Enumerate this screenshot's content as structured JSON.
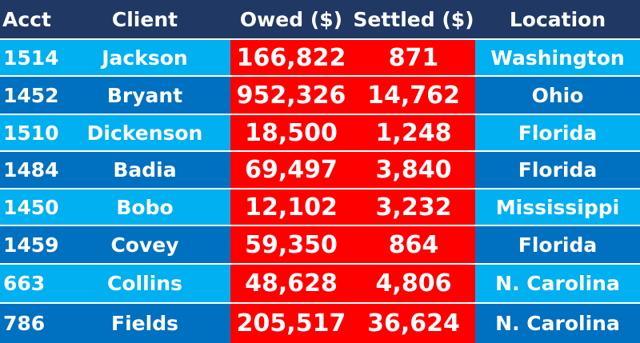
{
  "table": {
    "colors": {
      "header_bg": "#1f3864",
      "row_light": "#00b0f0",
      "row_dark": "#0070c0",
      "money_bg": "#ff0000",
      "text": "#ffffff"
    },
    "headers": [
      "Acct",
      "Client",
      "Owed ($)",
      "Settled ($)",
      "Location"
    ],
    "rows": [
      {
        "acct": "1514",
        "client": "Jackson",
        "owed": "166,822",
        "settled": "871",
        "location": "Washington",
        "shade": "light"
      },
      {
        "acct": "1452",
        "client": "Bryant",
        "owed": "952,326",
        "settled": "14,762",
        "location": "Ohio",
        "shade": "dark"
      },
      {
        "acct": "1510",
        "client": "Dickenson",
        "owed": "18,500",
        "settled": "1,248",
        "location": "Florida",
        "shade": "light"
      },
      {
        "acct": "1484",
        "client": "Badia",
        "owed": "69,497",
        "settled": "3,840",
        "location": "Florida",
        "shade": "dark"
      },
      {
        "acct": "1450",
        "client": "Bobo",
        "owed": "12,102",
        "settled": "3,232",
        "location": "Mississippi",
        "shade": "light"
      },
      {
        "acct": "1459",
        "client": "Covey",
        "owed": "59,350",
        "settled": "864",
        "location": "Florida",
        "shade": "dark"
      },
      {
        "acct": "663",
        "client": "Collins",
        "owed": "48,628",
        "settled": "4,806",
        "location": "N. Carolina",
        "shade": "light"
      },
      {
        "acct": "786",
        "client": "Fields",
        "owed": "205,517",
        "settled": "36,624",
        "location": "N. Carolina",
        "shade": "dark"
      }
    ]
  }
}
